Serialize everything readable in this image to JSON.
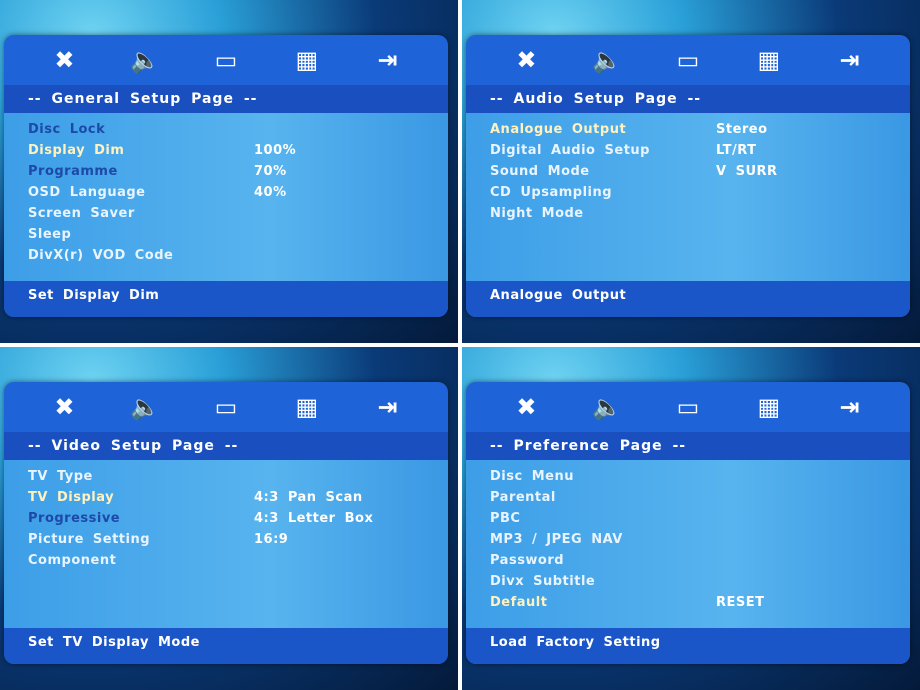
{
  "icons": [
    "tools-icon",
    "speaker-icon",
    "video-icon",
    "preference-grid-icon",
    "exit-icon"
  ],
  "panels": [
    {
      "title": "-- General Setup Page --",
      "items": [
        {
          "label": "Disc Lock",
          "state": "disabled"
        },
        {
          "label": "Display Dim",
          "state": "highlighted"
        },
        {
          "label": "Programme",
          "state": "disabled"
        },
        {
          "label": "OSD Language",
          "state": "normal"
        },
        {
          "label": "Screen Saver",
          "state": "normal"
        },
        {
          "label": "Sleep",
          "state": "normal"
        },
        {
          "label": "DivX(r) VOD Code",
          "state": "normal"
        }
      ],
      "options": [
        "100%",
        "70%",
        "40%"
      ],
      "options_start": 1,
      "footer": "Set Display Dim"
    },
    {
      "title": "-- Audio Setup Page --",
      "items": [
        {
          "label": "Analogue Output",
          "state": "highlighted"
        },
        {
          "label": "Digital Audio Setup",
          "state": "normal"
        },
        {
          "label": "Sound Mode",
          "state": "normal"
        },
        {
          "label": "CD Upsampling",
          "state": "normal"
        },
        {
          "label": "Night Mode",
          "state": "normal"
        }
      ],
      "options": [
        "Stereo",
        "LT/RT",
        "V SURR"
      ],
      "options_start": 0,
      "footer": "Analogue Output"
    },
    {
      "title": "-- Video Setup Page --",
      "items": [
        {
          "label": "TV Type",
          "state": "normal"
        },
        {
          "label": "TV Display",
          "state": "highlighted"
        },
        {
          "label": "Progressive",
          "state": "disabled"
        },
        {
          "label": "Picture Setting",
          "state": "normal"
        },
        {
          "label": "Component",
          "state": "normal"
        }
      ],
      "options": [
        "4:3 Pan Scan",
        "4:3 Letter Box",
        "16:9"
      ],
      "options_start": 1,
      "footer": "Set TV Display Mode"
    },
    {
      "title": "-- Preference Page --",
      "items": [
        {
          "label": "Disc Menu",
          "state": "normal"
        },
        {
          "label": "Parental",
          "state": "normal"
        },
        {
          "label": "PBC",
          "state": "normal"
        },
        {
          "label": "MP3 / JPEG NAV",
          "state": "normal"
        },
        {
          "label": "Password",
          "state": "normal"
        },
        {
          "label": "Divx Subtitle",
          "state": "normal"
        },
        {
          "label": "Default",
          "state": "highlighted"
        }
      ],
      "options": [
        "RESET"
      ],
      "options_start": 6,
      "footer": "Load Factory Setting"
    }
  ]
}
